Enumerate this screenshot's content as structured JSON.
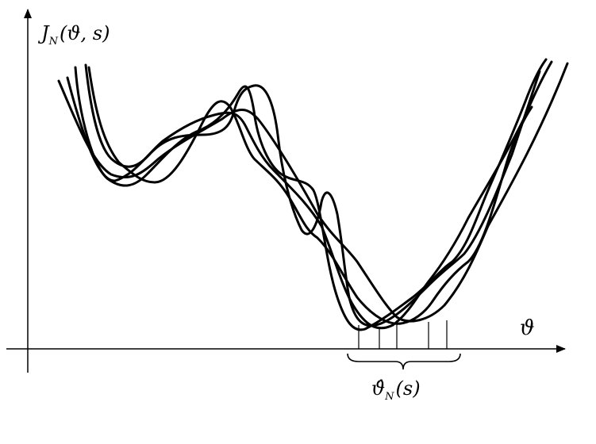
{
  "axes": {
    "y_label": {
      "symbol": "J",
      "subscript": "N",
      "args": "(ϑ, s)"
    },
    "x_label": "ϑ"
  },
  "estimate_label": {
    "symbol": "ϑ̂",
    "subscript": "N",
    "args": "(s)"
  },
  "curve_count": 5,
  "minima_markers": 5,
  "colors": {
    "stroke": "#000000",
    "background": "#ffffff"
  }
}
